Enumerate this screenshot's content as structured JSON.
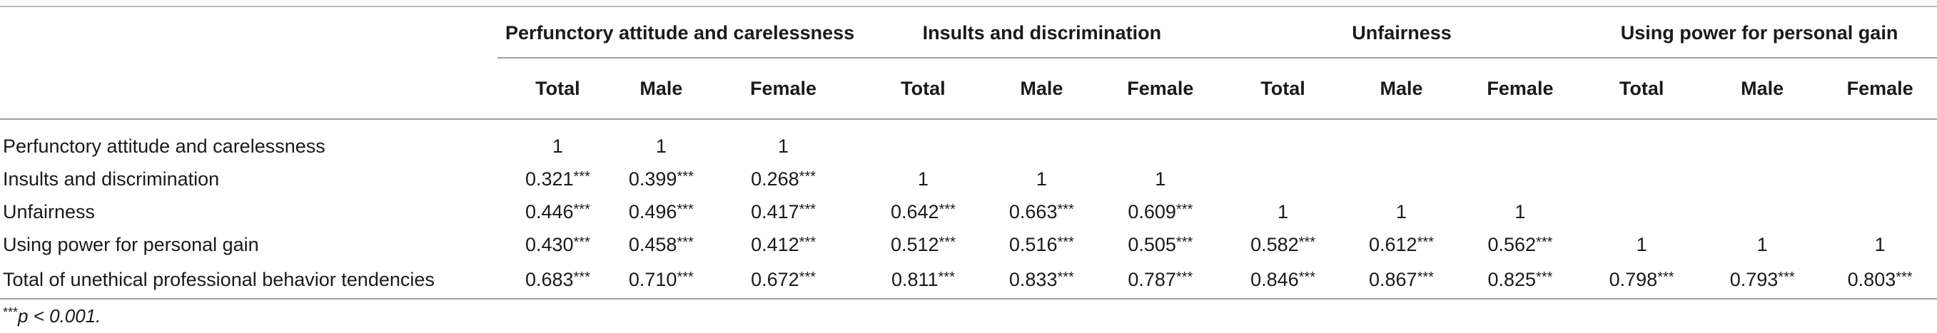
{
  "groups": [
    "Perfunctory attitude and carelessness",
    "Insults and discrimination",
    "Unfairness",
    "Using power for personal gain"
  ],
  "subheaders": [
    "Total",
    "Male",
    "Female"
  ],
  "rows": [
    {
      "label": "Perfunctory attitude and carelessness",
      "cells": [
        {
          "num": "1",
          "sig": ""
        },
        {
          "num": "1",
          "sig": ""
        },
        {
          "num": "1",
          "sig": ""
        },
        {
          "num": "",
          "sig": ""
        },
        {
          "num": "",
          "sig": ""
        },
        {
          "num": "",
          "sig": ""
        },
        {
          "num": "",
          "sig": ""
        },
        {
          "num": "",
          "sig": ""
        },
        {
          "num": "",
          "sig": ""
        },
        {
          "num": "",
          "sig": ""
        },
        {
          "num": "",
          "sig": ""
        },
        {
          "num": "",
          "sig": ""
        }
      ]
    },
    {
      "label": "Insults and discrimination",
      "cells": [
        {
          "num": "0.321",
          "sig": "***"
        },
        {
          "num": "0.399",
          "sig": "***"
        },
        {
          "num": "0.268",
          "sig": "***"
        },
        {
          "num": "1",
          "sig": ""
        },
        {
          "num": "1",
          "sig": ""
        },
        {
          "num": "1",
          "sig": ""
        },
        {
          "num": "",
          "sig": ""
        },
        {
          "num": "",
          "sig": ""
        },
        {
          "num": "",
          "sig": ""
        },
        {
          "num": "",
          "sig": ""
        },
        {
          "num": "",
          "sig": ""
        },
        {
          "num": "",
          "sig": ""
        }
      ]
    },
    {
      "label": "Unfairness",
      "cells": [
        {
          "num": "0.446",
          "sig": "***"
        },
        {
          "num": "0.496",
          "sig": "***"
        },
        {
          "num": "0.417",
          "sig": "***"
        },
        {
          "num": "0.642",
          "sig": "***"
        },
        {
          "num": "0.663",
          "sig": "***"
        },
        {
          "num": "0.609",
          "sig": "***"
        },
        {
          "num": "1",
          "sig": ""
        },
        {
          "num": "1",
          "sig": ""
        },
        {
          "num": "1",
          "sig": ""
        },
        {
          "num": "",
          "sig": ""
        },
        {
          "num": "",
          "sig": ""
        },
        {
          "num": "",
          "sig": ""
        }
      ]
    },
    {
      "label": "Using power for personal gain",
      "cells": [
        {
          "num": "0.430",
          "sig": "***"
        },
        {
          "num": "0.458",
          "sig": "***"
        },
        {
          "num": "0.412",
          "sig": "***"
        },
        {
          "num": "0.512",
          "sig": "***"
        },
        {
          "num": "0.516",
          "sig": "***"
        },
        {
          "num": "0.505",
          "sig": "***"
        },
        {
          "num": "0.582",
          "sig": "***"
        },
        {
          "num": "0.612",
          "sig": "***"
        },
        {
          "num": "0.562",
          "sig": "***"
        },
        {
          "num": "1",
          "sig": ""
        },
        {
          "num": "1",
          "sig": ""
        },
        {
          "num": "1",
          "sig": ""
        }
      ]
    },
    {
      "label": "Total of unethical professional behavior tendencies",
      "cells": [
        {
          "num": "0.683",
          "sig": "***"
        },
        {
          "num": "0.710",
          "sig": "***"
        },
        {
          "num": "0.672",
          "sig": "***"
        },
        {
          "num": "0.811",
          "sig": "***"
        },
        {
          "num": "0.833",
          "sig": "***"
        },
        {
          "num": "0.787",
          "sig": "***"
        },
        {
          "num": "0.846",
          "sig": "***"
        },
        {
          "num": "0.867",
          "sig": "***"
        },
        {
          "num": "0.825",
          "sig": "***"
        },
        {
          "num": "0.798",
          "sig": "***"
        },
        {
          "num": "0.793",
          "sig": "***"
        },
        {
          "num": "0.803",
          "sig": "***"
        }
      ]
    }
  ],
  "footnote": {
    "marker": "***",
    "text": "p < 0.001."
  }
}
